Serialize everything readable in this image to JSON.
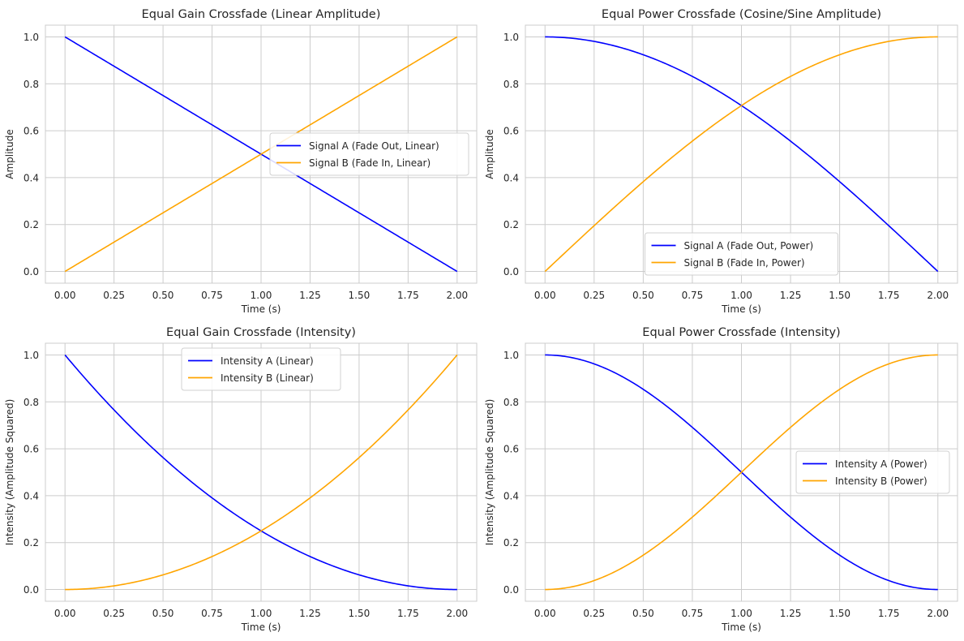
{
  "figure": {
    "background": "#ffffff",
    "axes_facecolor": "#ffffff",
    "grid_color": "#cccccc",
    "spine_color": "#cccccc"
  },
  "chart_data": [
    {
      "type": "line",
      "title": "Equal Gain Crossfade (Linear Amplitude)",
      "xlabel": "Time (s)",
      "ylabel": "Amplitude",
      "xlim": [
        -0.1,
        2.1
      ],
      "ylim": [
        -0.05,
        1.05
      ],
      "x_ticks": [
        "0.00",
        "0.25",
        "0.50",
        "0.75",
        "1.00",
        "1.25",
        "1.50",
        "1.75",
        "2.00"
      ],
      "y_ticks": [
        "0.0",
        "0.2",
        "0.4",
        "0.6",
        "0.8",
        "1.0"
      ],
      "grid": true,
      "legend_loc": "center right",
      "x": [
        0,
        0.25,
        0.5,
        0.75,
        1,
        1.25,
        1.5,
        1.75,
        2
      ],
      "series": [
        {
          "name": "Signal A (Fade Out, Linear)",
          "color": "#0000ff",
          "values": [
            1.0,
            0.875,
            0.75,
            0.625,
            0.5,
            0.375,
            0.25,
            0.125,
            0.0
          ]
        },
        {
          "name": "Signal B (Fade In, Linear)",
          "color": "#ffa500",
          "values": [
            0.0,
            0.125,
            0.25,
            0.375,
            0.5,
            0.625,
            0.75,
            0.875,
            1.0
          ]
        }
      ]
    },
    {
      "type": "line",
      "title": "Equal Power Crossfade (Cosine/Sine Amplitude)",
      "xlabel": "Time (s)",
      "ylabel": "Amplitude",
      "xlim": [
        -0.1,
        2.1
      ],
      "ylim": [
        -0.05,
        1.05
      ],
      "x_ticks": [
        "0.00",
        "0.25",
        "0.50",
        "0.75",
        "1.00",
        "1.25",
        "1.50",
        "1.75",
        "2.00"
      ],
      "y_ticks": [
        "0.0",
        "0.2",
        "0.4",
        "0.6",
        "0.8",
        "1.0"
      ],
      "grid": true,
      "legend_loc": "lower center",
      "x": [
        0,
        0.25,
        0.5,
        0.75,
        1,
        1.25,
        1.5,
        1.75,
        2
      ],
      "series": [
        {
          "name": "Signal A (Fade Out, Power)",
          "color": "#0000ff",
          "values": [
            1.0,
            0.981,
            0.924,
            0.831,
            0.707,
            0.556,
            0.383,
            0.195,
            0.0
          ]
        },
        {
          "name": "Signal B (Fade In, Power)",
          "color": "#ffa500",
          "values": [
            0.0,
            0.195,
            0.383,
            0.556,
            0.707,
            0.831,
            0.924,
            0.981,
            1.0
          ]
        }
      ]
    },
    {
      "type": "line",
      "title": "Equal Gain Crossfade (Intensity)",
      "xlabel": "Time (s)",
      "ylabel": "Intensity (Amplitude Squared)",
      "xlim": [
        -0.1,
        2.1
      ],
      "ylim": [
        -0.05,
        1.05
      ],
      "x_ticks": [
        "0.00",
        "0.25",
        "0.50",
        "0.75",
        "1.00",
        "1.25",
        "1.50",
        "1.75",
        "2.00"
      ],
      "y_ticks": [
        "0.0",
        "0.2",
        "0.4",
        "0.6",
        "0.8",
        "1.0"
      ],
      "grid": true,
      "legend_loc": "upper center",
      "x": [
        0,
        0.25,
        0.5,
        0.75,
        1,
        1.25,
        1.5,
        1.75,
        2
      ],
      "series": [
        {
          "name": "Intensity A (Linear)",
          "color": "#0000ff",
          "values": [
            1.0,
            0.766,
            0.563,
            0.391,
            0.25,
            0.141,
            0.063,
            0.016,
            0.0
          ]
        },
        {
          "name": "Intensity B (Linear)",
          "color": "#ffa500",
          "values": [
            0.0,
            0.016,
            0.063,
            0.141,
            0.25,
            0.391,
            0.563,
            0.766,
            1.0
          ]
        }
      ]
    },
    {
      "type": "line",
      "title": "Equal Power Crossfade (Intensity)",
      "xlabel": "Time (s)",
      "ylabel": "Intensity (Amplitude Squared)",
      "xlim": [
        -0.1,
        2.1
      ],
      "ylim": [
        -0.05,
        1.05
      ],
      "x_ticks": [
        "0.00",
        "0.25",
        "0.50",
        "0.75",
        "1.00",
        "1.25",
        "1.50",
        "1.75",
        "2.00"
      ],
      "y_ticks": [
        "0.0",
        "0.2",
        "0.4",
        "0.6",
        "0.8",
        "1.0"
      ],
      "grid": true,
      "legend_loc": "center right",
      "x": [
        0,
        0.25,
        0.5,
        0.75,
        1,
        1.25,
        1.5,
        1.75,
        2
      ],
      "series": [
        {
          "name": "Intensity A (Power)",
          "color": "#0000ff",
          "values": [
            1.0,
            0.962,
            0.854,
            0.691,
            0.5,
            0.309,
            0.146,
            0.038,
            0.0
          ]
        },
        {
          "name": "Intensity B (Power)",
          "color": "#ffa500",
          "values": [
            0.0,
            0.038,
            0.146,
            0.309,
            0.5,
            0.691,
            0.854,
            0.962,
            1.0
          ]
        }
      ]
    }
  ]
}
